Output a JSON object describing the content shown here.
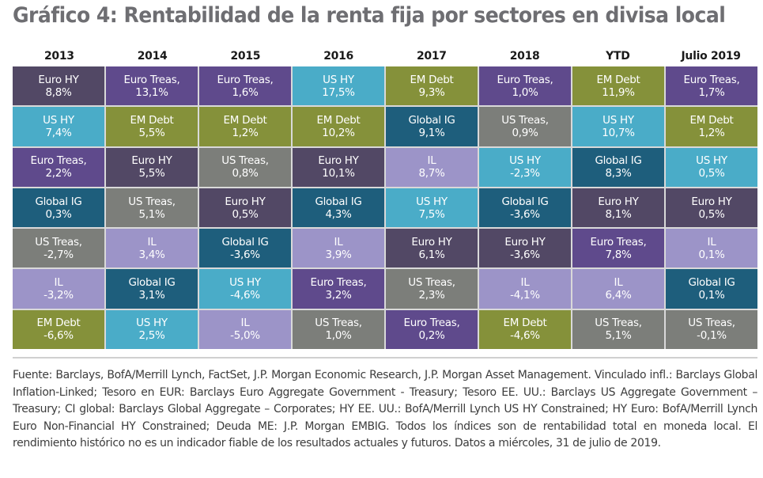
{
  "title": "Gráfico 4: Rentabilidad de la renta fija por sectores en divisa local",
  "colors": {
    "Euro HY": "#524865",
    "Euro Treas,": "#5f4a8c",
    "US HY": "#4aacc8",
    "EM Debt": "#85913a",
    "Global IG": "#1e5e7c",
    "US Treas,": "#7c7e7a",
    "IL": "#9c94c8"
  },
  "chart_data": {
    "type": "table",
    "title": "Gráfico 4: Rentabilidad de la renta fija por sectores en divisa local",
    "columns": [
      "2013",
      "2014",
      "2015",
      "2016",
      "2017",
      "2018",
      "YTD",
      "Julio 2019"
    ],
    "rows": [
      [
        {
          "sector": "Euro HY",
          "value": "8,8%"
        },
        {
          "sector": "Euro Treas,",
          "value": "13,1%"
        },
        {
          "sector": "Euro Treas,",
          "value": "1,6%"
        },
        {
          "sector": "US HY",
          "value": "17,5%"
        },
        {
          "sector": "EM Debt",
          "value": "9,3%"
        },
        {
          "sector": "Euro Treas,",
          "value": "1,0%"
        },
        {
          "sector": "EM Debt",
          "value": "11,9%"
        },
        {
          "sector": "Euro Treas,",
          "value": "1,7%"
        }
      ],
      [
        {
          "sector": "US HY",
          "value": "7,4%"
        },
        {
          "sector": "EM Debt",
          "value": "5,5%"
        },
        {
          "sector": "EM Debt",
          "value": "1,2%"
        },
        {
          "sector": "EM Debt",
          "value": "10,2%"
        },
        {
          "sector": "Global IG",
          "value": "9,1%"
        },
        {
          "sector": "US Treas,",
          "value": "0,9%"
        },
        {
          "sector": "US HY",
          "value": "10,7%"
        },
        {
          "sector": "EM Debt",
          "value": "1,2%"
        }
      ],
      [
        {
          "sector": "Euro Treas,",
          "value": "2,2%"
        },
        {
          "sector": "Euro HY",
          "value": "5,5%"
        },
        {
          "sector": "US Treas,",
          "value": "0,8%"
        },
        {
          "sector": "Euro HY",
          "value": "10,1%"
        },
        {
          "sector": "IL",
          "value": "8,7%"
        },
        {
          "sector": "US HY",
          "value": "-2,3%"
        },
        {
          "sector": "Global IG",
          "value": "8,3%"
        },
        {
          "sector": "US HY",
          "value": "0,5%"
        }
      ],
      [
        {
          "sector": "Global IG",
          "value": "0,3%"
        },
        {
          "sector": "US Treas,",
          "value": "5,1%"
        },
        {
          "sector": "Euro HY",
          "value": "0,5%"
        },
        {
          "sector": "Global IG",
          "value": "4,3%"
        },
        {
          "sector": "US HY",
          "value": "7,5%"
        },
        {
          "sector": "Global IG",
          "value": "-3,6%"
        },
        {
          "sector": "Euro HY",
          "value": "8,1%"
        },
        {
          "sector": "Euro HY",
          "value": "0,5%"
        }
      ],
      [
        {
          "sector": "US Treas,",
          "value": "-2,7%"
        },
        {
          "sector": "IL",
          "value": "3,4%"
        },
        {
          "sector": "Global IG",
          "value": "-3,6%"
        },
        {
          "sector": "IL",
          "value": "3,9%"
        },
        {
          "sector": "Euro HY",
          "value": "6,1%"
        },
        {
          "sector": "Euro HY",
          "value": "-3,6%"
        },
        {
          "sector": "Euro Treas,",
          "value": "7,8%"
        },
        {
          "sector": "IL",
          "value": "0,1%"
        }
      ],
      [
        {
          "sector": "IL",
          "value": "-3,2%"
        },
        {
          "sector": "Global IG",
          "value": "3,1%"
        },
        {
          "sector": "US HY",
          "value": "-4,6%"
        },
        {
          "sector": "Euro Treas,",
          "value": "3,2%"
        },
        {
          "sector": "US Treas,",
          "value": "2,3%"
        },
        {
          "sector": "IL",
          "value": "-4,1%"
        },
        {
          "sector": "IL",
          "value": "6,4%"
        },
        {
          "sector": "Global IG",
          "value": "0,1%"
        }
      ],
      [
        {
          "sector": "EM Debt",
          "value": "-6,6%"
        },
        {
          "sector": "US HY",
          "value": "2,5%"
        },
        {
          "sector": "IL",
          "value": "-5,0%"
        },
        {
          "sector": "US Treas,",
          "value": "1,0%"
        },
        {
          "sector": "Euro Treas,",
          "value": "0,2%"
        },
        {
          "sector": "EM Debt",
          "value": "-4,6%"
        },
        {
          "sector": "US Treas,",
          "value": "5,1%"
        },
        {
          "sector": "US Treas,",
          "value": "-0,1%"
        }
      ]
    ]
  },
  "footnote": "Fuente: Barclays, BofA/Merrill Lynch, FactSet, J.P. Morgan Economic Research, J.P. Morgan Asset Management. Vinculado infl.: Barclays Global Inflation-Linked; Tesoro en EUR:  Barclays Euro Aggregate Government - Treasury; Tesoro EE. UU.: Barclays US Aggregate Government – Treasury; CI global: Barclays Global Aggregate – Corporates; HY EE. UU.: BofA/Merrill Lynch US HY Constrained; HY Euro: BofA/Merrill Lynch Euro Non-Financial HY Constrained; Deuda ME: J.P. Morgan EMBIG. Todos los índices son de rentabilidad total en moneda local. El rendimiento histórico no es un indicador fiable de los resultados actuales y futuros. Datos a miércoles, 31 de julio de 2019."
}
